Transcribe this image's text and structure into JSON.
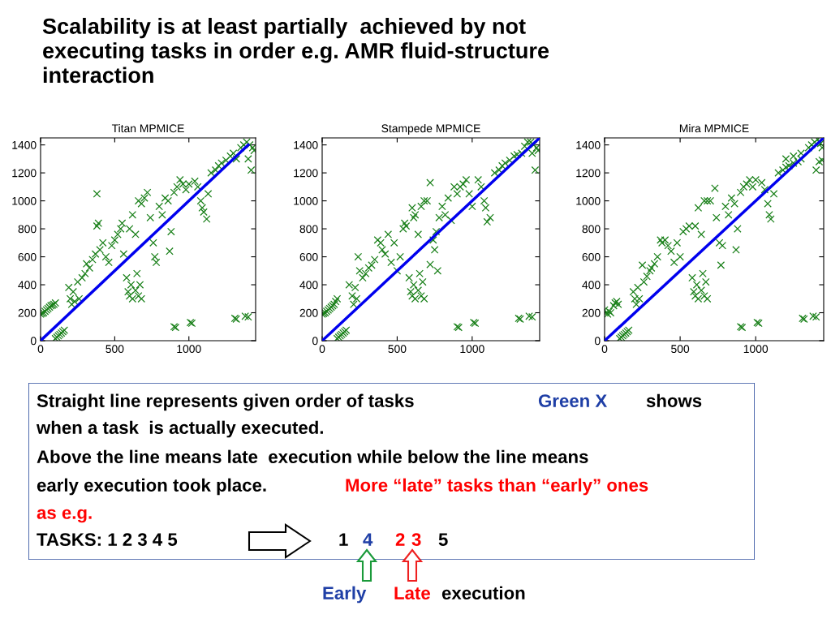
{
  "chart_data": [
    {
      "type": "scatter",
      "title": "Titan MPMICE",
      "xlim": [
        0,
        1450
      ],
      "ylim": [
        0,
        1450
      ],
      "xticks": [
        0,
        500,
        1000
      ],
      "yticks": [
        0,
        200,
        400,
        600,
        800,
        1000,
        1200,
        1400
      ],
      "grid": false,
      "series": [
        {
          "type": "scatter",
          "marker": "cross",
          "color": "#1a801a",
          "x": [
            0,
            10,
            20,
            30,
            40,
            50,
            60,
            70,
            80,
            90,
            100,
            100,
            110,
            120,
            130,
            140,
            150,
            160,
            190,
            200,
            210,
            220,
            230,
            250,
            260,
            280,
            300,
            310,
            330,
            350,
            370,
            380,
            390,
            400,
            420,
            440,
            460,
            480,
            500,
            520,
            540,
            550,
            560,
            380,
            600,
            620,
            640,
            660,
            680,
            700,
            720,
            740,
            760,
            770,
            780,
            800,
            820,
            840,
            860,
            870,
            880,
            900,
            920,
            940,
            960,
            980,
            1000,
            1040,
            1060,
            1080,
            1090,
            1100,
            1120,
            1130,
            580,
            590,
            600,
            610,
            620,
            640,
            650,
            660,
            670,
            680,
            1150,
            1180,
            1200,
            1220,
            1250,
            1280,
            1300,
            1320,
            1350,
            1370,
            1390,
            1410,
            1430,
            1440,
            1400,
            1420,
            900,
            910,
            1010,
            1020,
            1310,
            1320,
            1380,
            1400
          ],
          "values": [
            190,
            195,
            200,
            210,
            220,
            230,
            240,
            250,
            255,
            260,
            270,
            15,
            25,
            35,
            45,
            55,
            65,
            75,
            380,
            300,
            260,
            350,
            280,
            420,
            300,
            450,
            480,
            550,
            520,
            580,
            620,
            820,
            840,
            650,
            700,
            600,
            560,
            680,
            720,
            760,
            800,
            840,
            620,
            1050,
            800,
            900,
            760,
            1000,
            980,
            1020,
            1060,
            880,
            700,
            600,
            560,
            960,
            900,
            1020,
            1000,
            640,
            780,
            1060,
            1100,
            1150,
            1120,
            1080,
            1120,
            1140,
            1100,
            1000,
            950,
            920,
            870,
            1050,
            450,
            350,
            320,
            400,
            300,
            360,
            480,
            320,
            400,
            300,
            1200,
            1220,
            1250,
            1270,
            1290,
            1320,
            1340,
            1300,
            1380,
            1400,
            1420,
            1400,
            1380,
            1360,
            1300,
            1220,
            100,
            95,
            130,
            125,
            160,
            155,
            175,
            170
          ]
        },
        {
          "type": "line",
          "color": "#0000ee",
          "x": [
            0,
            1400
          ],
          "values": [
            0,
            1400
          ]
        }
      ]
    },
    {
      "type": "scatter",
      "title": "Stampede MPMICE",
      "xlim": [
        0,
        1450
      ],
      "ylim": [
        0,
        1450
      ],
      "xticks": [
        0,
        500,
        1000
      ],
      "yticks": [
        0,
        200,
        400,
        600,
        800,
        1000,
        1200,
        1400
      ],
      "grid": false,
      "series": [
        {
          "type": "scatter",
          "marker": "cross",
          "color": "#1a801a",
          "x": [
            0,
            10,
            20,
            30,
            40,
            50,
            60,
            70,
            80,
            90,
            100,
            100,
            110,
            120,
            130,
            140,
            150,
            160,
            180,
            200,
            210,
            220,
            230,
            240,
            250,
            270,
            290,
            310,
            330,
            350,
            370,
            390,
            400,
            420,
            440,
            460,
            480,
            500,
            520,
            540,
            550,
            560,
            600,
            610,
            620,
            640,
            660,
            680,
            700,
            720,
            720,
            740,
            750,
            760,
            770,
            780,
            800,
            820,
            840,
            860,
            880,
            900,
            920,
            940,
            960,
            980,
            1000,
            1040,
            1060,
            1080,
            1090,
            1100,
            1120,
            580,
            590,
            600,
            610,
            620,
            640,
            650,
            660,
            670,
            680,
            1150,
            1180,
            1200,
            1220,
            1250,
            1280,
            1300,
            1330,
            1350,
            1370,
            1390,
            1410,
            1430,
            1440,
            1400,
            1420,
            900,
            910,
            1010,
            1020,
            1310,
            1320,
            1380,
            1400
          ],
          "values": [
            190,
            195,
            200,
            210,
            220,
            230,
            240,
            250,
            260,
            280,
            300,
            15,
            25,
            35,
            45,
            55,
            65,
            75,
            400,
            320,
            260,
            380,
            300,
            600,
            500,
            450,
            480,
            520,
            540,
            580,
            720,
            700,
            650,
            620,
            760,
            560,
            700,
            500,
            600,
            800,
            840,
            820,
            950,
            880,
            900,
            760,
            960,
            1000,
            1000,
            1130,
            545,
            720,
            650,
            780,
            500,
            880,
            960,
            900,
            1020,
            860,
            1100,
            1050,
            1100,
            1120,
            1150,
            1050,
            960,
            1150,
            1100,
            1000,
            950,
            850,
            880,
            450,
            350,
            320,
            400,
            300,
            360,
            480,
            320,
            420,
            300,
            1200,
            1220,
            1250,
            1270,
            1290,
            1320,
            1330,
            1340,
            1390,
            1420,
            1420,
            1400,
            1380,
            1360,
            1340,
            1220,
            100,
            95,
            130,
            125,
            160,
            155,
            175,
            170
          ]
        },
        {
          "type": "line",
          "color": "#0000ee",
          "x": [
            0,
            1450
          ],
          "values": [
            0,
            1450
          ]
        }
      ]
    },
    {
      "type": "scatter",
      "title": "Mira MPMICE",
      "xlim": [
        0,
        1450
      ],
      "ylim": [
        0,
        1450
      ],
      "xticks": [
        0,
        500,
        1000
      ],
      "yticks": [
        0,
        200,
        400,
        600,
        800,
        1000,
        1200,
        1400
      ],
      "grid": false,
      "series": [
        {
          "type": "scatter",
          "marker": "cross",
          "color": "#1a801a",
          "x": [
            0,
            10,
            20,
            30,
            40,
            60,
            70,
            80,
            90,
            100,
            110,
            120,
            130,
            140,
            150,
            160,
            190,
            200,
            210,
            220,
            230,
            250,
            260,
            280,
            300,
            310,
            330,
            350,
            370,
            380,
            400,
            420,
            440,
            460,
            480,
            500,
            520,
            540,
            560,
            600,
            620,
            640,
            660,
            680,
            700,
            730,
            740,
            760,
            770,
            780,
            800,
            820,
            840,
            860,
            870,
            880,
            900,
            920,
            940,
            960,
            980,
            1000,
            1040,
            1060,
            1080,
            1090,
            1100,
            1120,
            580,
            590,
            600,
            610,
            620,
            640,
            650,
            660,
            670,
            680,
            1150,
            1180,
            1200,
            1220,
            1250,
            1280,
            1300,
            1200,
            1250,
            1300,
            1350,
            1370,
            1390,
            1410,
            1430,
            1440,
            1420,
            1440,
            1400,
            900,
            910,
            1010,
            1020,
            1310,
            1320,
            1380,
            1400
          ],
          "values": [
            220,
            200,
            190,
            210,
            200,
            250,
            270,
            280,
            260,
            15,
            25,
            35,
            45,
            55,
            65,
            75,
            350,
            300,
            260,
            380,
            300,
            540,
            420,
            460,
            500,
            520,
            550,
            600,
            720,
            700,
            720,
            680,
            640,
            560,
            700,
            600,
            780,
            800,
            820,
            820,
            950,
            760,
            1000,
            1000,
            1000,
            1090,
            880,
            700,
            540,
            680,
            960,
            900,
            1020,
            980,
            650,
            800,
            1060,
            1100,
            1120,
            1150,
            1100,
            1150,
            1130,
            1080,
            980,
            900,
            870,
            1050,
            450,
            350,
            320,
            400,
            300,
            360,
            480,
            320,
            420,
            300,
            1200,
            1220,
            1240,
            1250,
            1270,
            1280,
            1300,
            1300,
            1320,
            1340,
            1380,
            1400,
            1420,
            1440,
            1410,
            1380,
            1280,
            1290,
            1220,
            100,
            95,
            130,
            125,
            160,
            155,
            175,
            170
          ]
        },
        {
          "type": "line",
          "color": "#0000ee",
          "x": [
            0,
            1450
          ],
          "values": [
            0,
            1450
          ]
        }
      ]
    },
    {
      "type": "other",
      "title": "Scalability is at least partially  achieved by not\nexecuting tasks in order e.g. AMR fluid-structure\ninteraction",
      "annotations": [
        "Straight line represents given order of tasks",
        "Green X",
        "shows",
        "when a task  is actually executed.",
        "Above the line means late  execution while below the line means",
        "early execution took place.",
        "More “late” tasks than “early” ones",
        "as e.g.",
        "TASKS: 1 2 3 4 5",
        "1",
        "4",
        "2",
        "3",
        "5",
        "Early",
        "Late",
        "execution"
      ]
    }
  ]
}
